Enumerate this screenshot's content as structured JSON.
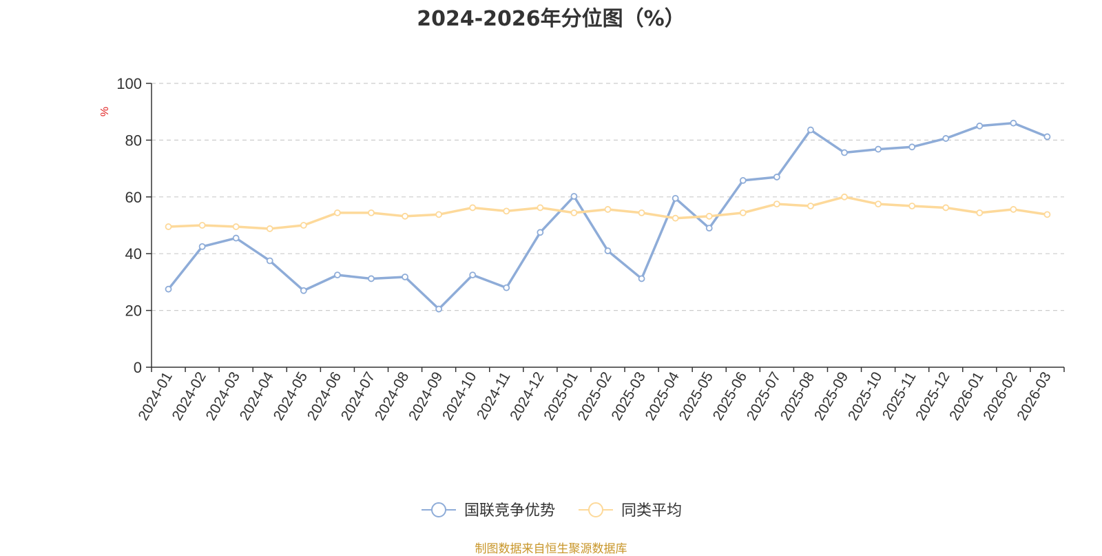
{
  "chart_data": {
    "type": "line",
    "title": "2024-2026年分位图（%）",
    "ylabel": "%",
    "xlabel": "",
    "ylim": [
      0,
      100
    ],
    "yticks": [
      0,
      20,
      40,
      60,
      80,
      100
    ],
    "grid": true,
    "legend_position": "bottom-center",
    "categories": [
      "2024-01",
      "2024-02",
      "2024-03",
      "2024-04",
      "2024-05",
      "2024-06",
      "2024-07",
      "2024-08",
      "2024-09",
      "2024-10",
      "2024-11",
      "2024-12",
      "2025-01",
      "2025-02",
      "2025-03",
      "2025-04",
      "2025-05",
      "2025-06",
      "2025-07",
      "2025-08",
      "2025-09",
      "2025-10",
      "2025-11",
      "2025-12",
      "2026-01",
      "2026-02",
      "2026-03"
    ],
    "series": [
      {
        "name": "国联竞争优势",
        "color": "#8eacd8",
        "values": [
          27.5,
          42.5,
          45.5,
          37.5,
          27,
          32.5,
          31.2,
          31.8,
          20.5,
          32.5,
          28,
          47.5,
          60.2,
          41,
          31.2,
          59.5,
          49,
          65.8,
          67,
          83.6,
          75.6,
          76.8,
          77.6,
          80.6,
          85,
          86,
          81.2
        ]
      },
      {
        "name": "同类平均",
        "color": "#fdd99a",
        "values": [
          49.5,
          50,
          49.5,
          48.8,
          50,
          54.4,
          54.4,
          53.2,
          53.8,
          56.2,
          55,
          56.2,
          54.4,
          55.6,
          54.4,
          52.5,
          53.2,
          54.4,
          57.5,
          56.8,
          60,
          57.5,
          56.8,
          56.2,
          54.4,
          55.6,
          53.8
        ]
      }
    ]
  },
  "source_note": "制图数据来自恒生聚源数据库"
}
